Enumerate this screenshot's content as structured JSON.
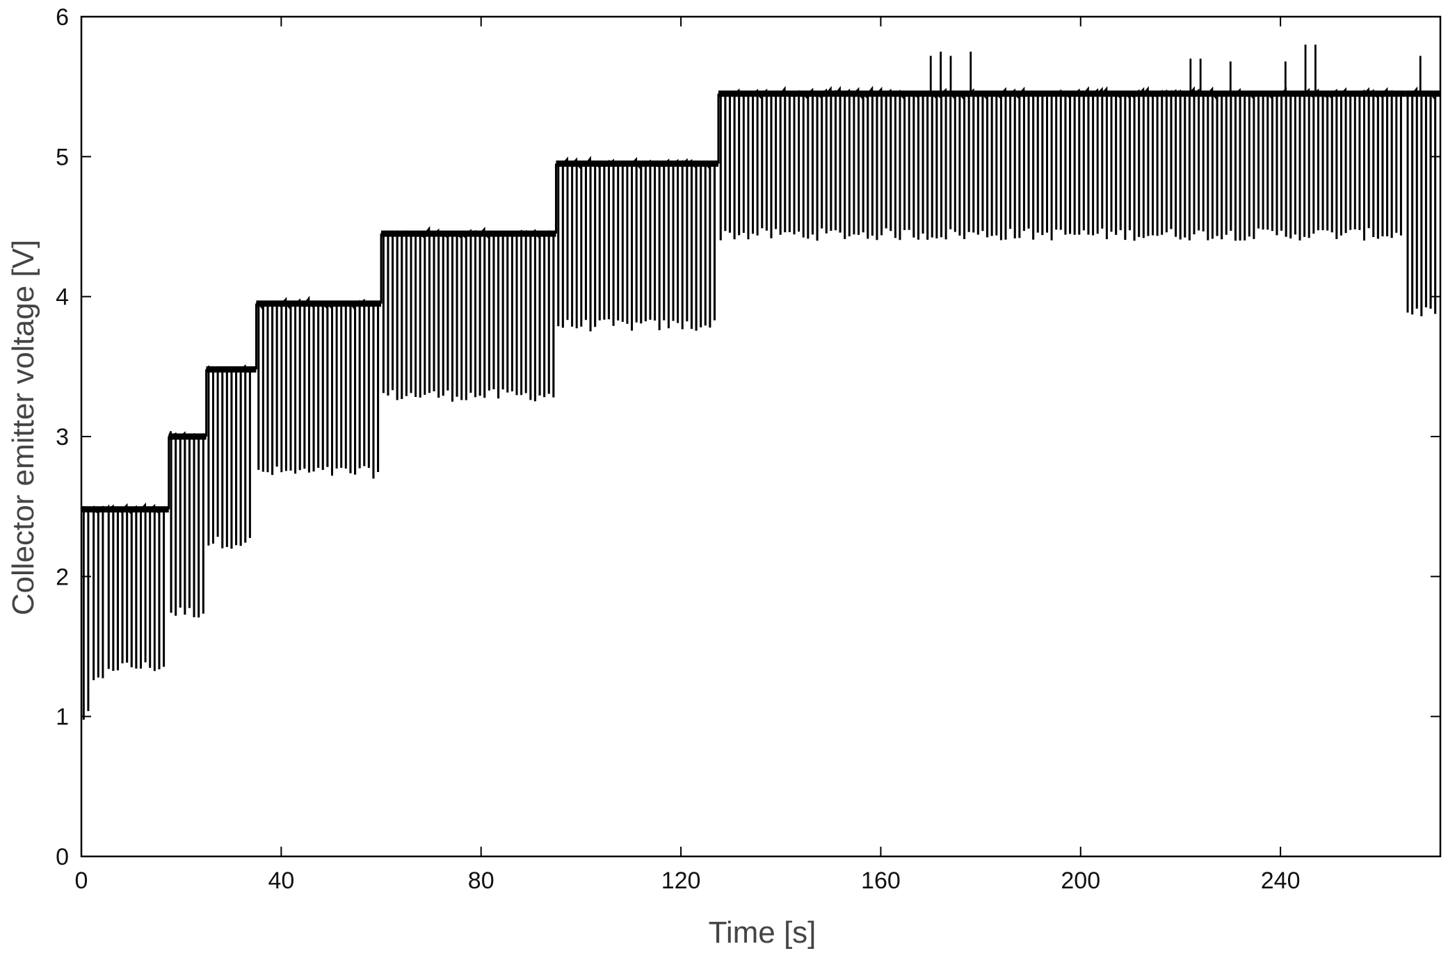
{
  "chart_data": {
    "type": "line",
    "title": "",
    "xlabel": "Time [s]",
    "ylabel": "Collector emitter voltage [V]",
    "xlim": [
      0,
      272
    ],
    "ylim": [
      0,
      6
    ],
    "grid": false,
    "legend": "none",
    "x_ticks": [
      "0",
      "40",
      "80",
      "120",
      "160",
      "200",
      "240"
    ],
    "y_ticks": [
      "0",
      "1",
      "2",
      "3",
      "4",
      "5",
      "6"
    ],
    "line_color": "#000000",
    "series": [
      {
        "style": "pulsed switching between on-level and dip-level",
        "segments": [
          {
            "t_start": 0,
            "t_end": 2,
            "high": 2.48,
            "low": 1.0
          },
          {
            "t_start": 2,
            "t_end": 5,
            "high": 2.48,
            "low": 1.25
          },
          {
            "t_start": 5,
            "t_end": 17.5,
            "high": 2.48,
            "low": 1.36
          },
          {
            "t_start": 17.5,
            "t_end": 25,
            "high": 3.0,
            "low": 1.75
          },
          {
            "t_start": 25,
            "t_end": 35,
            "high": 3.48,
            "low": 2.25
          },
          {
            "t_start": 35,
            "t_end": 60,
            "high": 3.95,
            "low": 2.75
          },
          {
            "t_start": 60,
            "t_end": 95,
            "high": 4.45,
            "low": 3.3
          },
          {
            "t_start": 95,
            "t_end": 127.5,
            "high": 4.95,
            "low": 3.8
          },
          {
            "t_start": 127.5,
            "t_end": 265,
            "high": 5.45,
            "low": 4.45
          },
          {
            "t_start": 265,
            "t_end": 272,
            "high": 5.45,
            "low": 3.9
          }
        ],
        "spikes": [
          {
            "t": 170,
            "v": 5.72
          },
          {
            "t": 172,
            "v": 5.75
          },
          {
            "t": 174,
            "v": 5.72
          },
          {
            "t": 178,
            "v": 5.75
          },
          {
            "t": 222,
            "v": 5.7
          },
          {
            "t": 224,
            "v": 5.7
          },
          {
            "t": 230,
            "v": 5.68
          },
          {
            "t": 241,
            "v": 5.68
          },
          {
            "t": 245,
            "v": 5.8
          },
          {
            "t": 247,
            "v": 5.8
          },
          {
            "t": 268,
            "v": 5.72
          }
        ]
      }
    ]
  }
}
